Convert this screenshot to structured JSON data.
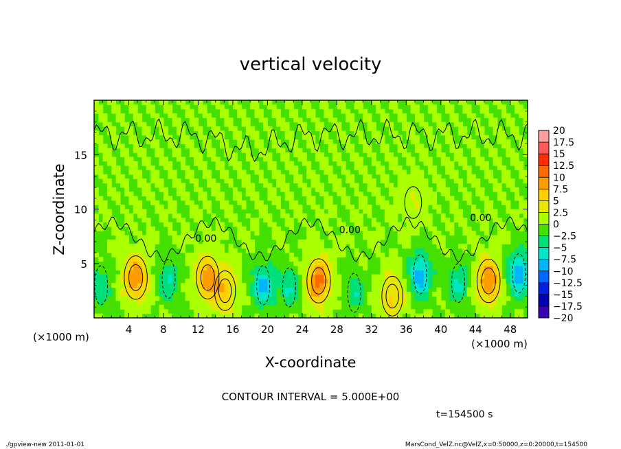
{
  "chart_data": {
    "type": "heatmap",
    "title": "vertical velocity",
    "xlabel": "X-coordinate",
    "ylabel": "Z-coordinate",
    "x_unit_left": "(×1000 m)",
    "x_unit_right": "(×1000 m)",
    "xlim": [
      0,
      50
    ],
    "ylim": [
      0,
      20
    ],
    "x_ticks": [
      {
        "v": 4,
        "label": "4"
      },
      {
        "v": 8,
        "label": "8"
      },
      {
        "v": 12,
        "label": "12"
      },
      {
        "v": 16,
        "label": "16"
      },
      {
        "v": 20,
        "label": "20"
      },
      {
        "v": 24,
        "label": "24"
      },
      {
        "v": 28,
        "label": "28"
      },
      {
        "v": 32,
        "label": "32"
      },
      {
        "v": 36,
        "label": "36"
      },
      {
        "v": 40,
        "label": "40"
      },
      {
        "v": 44,
        "label": "44"
      },
      {
        "v": 48,
        "label": "48"
      }
    ],
    "y_ticks": [
      {
        "v": 5,
        "label": "5"
      },
      {
        "v": 10,
        "label": "10"
      },
      {
        "v": 15,
        "label": "15"
      }
    ],
    "contour_interval_text": "CONTOUR INTERVAL = 5.000E+00",
    "contour_labels": [
      {
        "x": 12.9,
        "y": 7.0,
        "text": "0.00"
      },
      {
        "x": 29.5,
        "y": 7.8,
        "text": "0.00"
      },
      {
        "x": 44.6,
        "y": 8.9,
        "text": "0.00"
      }
    ],
    "time_text": "t=154500 s",
    "colorbar": {
      "labels": [
        "20",
        "17.5",
        "15",
        "12.5",
        "10",
        "7.5",
        "5",
        "2.5",
        "0",
        "−2.5",
        "−5",
        "−7.5",
        "−10",
        "−12.5",
        "−15",
        "−17.5",
        "−20"
      ],
      "colors": [
        "#ff9e9e",
        "#ff5a5a",
        "#ff2d00",
        "#ff6a00",
        "#ff9d00",
        "#ffd000",
        "#e6e600",
        "#aaff00",
        "#44e000",
        "#00e07a",
        "#00e6c8",
        "#00b4ff",
        "#0066ff",
        "#0022e0",
        "#0000b4",
        "#3c00b4"
      ]
    },
    "updrafts": [
      {
        "x": 4.8,
        "y": 3.7,
        "peak": 10
      },
      {
        "x": 13.1,
        "y": 3.7,
        "peak": 9
      },
      {
        "x": 15.1,
        "y": 2.5,
        "peak": 6
      },
      {
        "x": 25.9,
        "y": 3.4,
        "peak": 11
      },
      {
        "x": 34.4,
        "y": 2.0,
        "peak": 6
      },
      {
        "x": 45.5,
        "y": 3.4,
        "peak": 10
      },
      {
        "x": 36.8,
        "y": 10.6,
        "peak": 2.5
      }
    ],
    "downdrafts": [
      {
        "x": 8.6,
        "y": 3.6,
        "peak": -5
      },
      {
        "x": 19.5,
        "y": 3.0,
        "peak": -8
      },
      {
        "x": 22.5,
        "y": 2.8,
        "peak": -5
      },
      {
        "x": 30.0,
        "y": 2.3,
        "peak": -4
      },
      {
        "x": 37.6,
        "y": 4.0,
        "peak": -9
      },
      {
        "x": 42.0,
        "y": 3.2,
        "peak": -5
      },
      {
        "x": 49.0,
        "y": 4.1,
        "peak": -10
      },
      {
        "x": 0.8,
        "y": 3.0,
        "peak": -4
      }
    ]
  },
  "footer": {
    "left": "./gpview-new  2011-01-01",
    "right": "MarsCond_VelZ.nc@VelZ,x=0:50000,z=0:20000,t=154500"
  }
}
